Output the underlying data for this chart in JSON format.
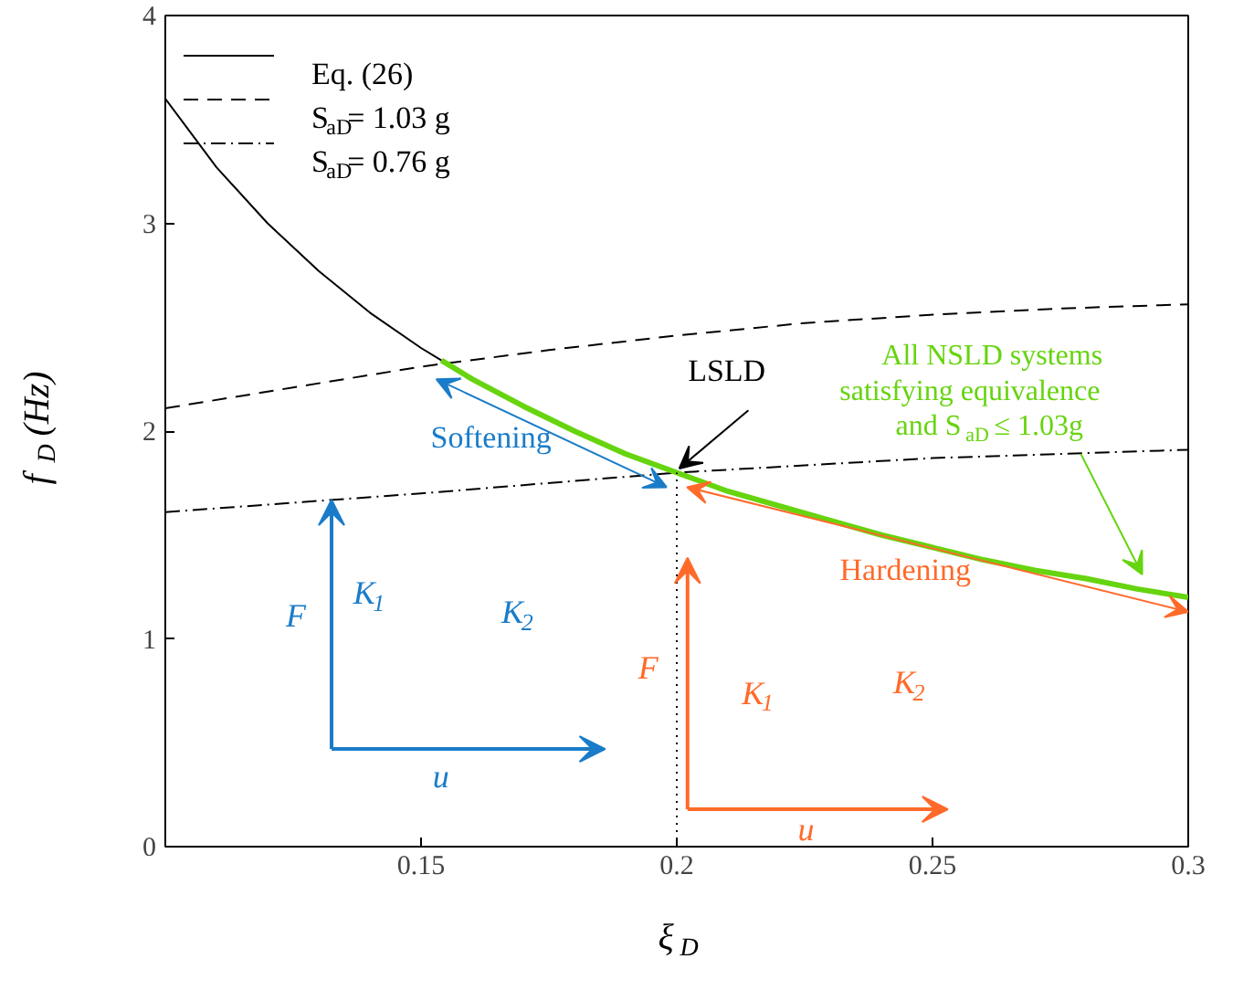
{
  "chart_data": {
    "type": "line",
    "xlabel": "ξ$_{D}$",
    "ylabel": "f$_{D}$ (Hz)",
    "xlim": [
      0.1,
      0.3
    ],
    "ylim": [
      0,
      4
    ],
    "xticks": [
      0.15,
      0.2,
      0.25,
      0.3
    ],
    "yticks": [
      0,
      1,
      2,
      3,
      4
    ],
    "grid": false,
    "legend": "top left",
    "series": [
      {
        "name": "Eq. (26)",
        "color": "#000000",
        "line_style": "solid",
        "x": [
          0.1,
          0.11,
          0.12,
          0.13,
          0.14,
          0.15,
          0.154
        ],
        "values": [
          3.6,
          3.27,
          3.0,
          2.77,
          2.57,
          2.4,
          2.34
        ]
      },
      {
        "name": "S$_{aD}$= 1.03 g",
        "color": "#000000",
        "line_style": "dashed",
        "x": [
          0.1,
          0.125,
          0.15,
          0.175,
          0.2,
          0.225,
          0.25,
          0.275,
          0.3
        ],
        "values": [
          2.11,
          2.21,
          2.31,
          2.39,
          2.46,
          2.52,
          2.56,
          2.59,
          2.61
        ]
      },
      {
        "name": "S$_{aD}$= 0.76 g",
        "color": "#000000",
        "line_style": "dashdot",
        "x": [
          0.1,
          0.15,
          0.2,
          0.25,
          0.3
        ],
        "values": [
          1.61,
          1.7,
          1.8,
          1.87,
          1.91
        ]
      },
      {
        "color": "#66d40e",
        "line_style": "solid",
        "x": [
          0.154,
          0.16,
          0.17,
          0.18,
          0.19,
          0.2,
          0.21,
          0.22,
          0.23,
          0.24,
          0.25,
          0.26,
          0.27,
          0.28,
          0.29,
          0.3
        ],
        "values": [
          2.34,
          2.25,
          2.12,
          2.0,
          1.89,
          1.8,
          1.71,
          1.64,
          1.57,
          1.5,
          1.44,
          1.38,
          1.33,
          1.29,
          1.24,
          1.2
        ]
      }
    ],
    "ref_lines": [
      {
        "axis": "x",
        "value": 0.2,
        "line_style": "dotted"
      }
    ],
    "annotations": [
      {
        "text": "LSLD",
        "x": 0.2,
        "y": 1.8
      },
      "Softening",
      "Hardening",
      {
        "text": "All NSLD systems\nsatisfying equivalence\nand S$_{aD}$ ≤ 1.03g",
        "x": 0.291,
        "y": 1.29
      },
      "F",
      "K$_{1}$",
      "K$_{2}$",
      "u",
      "F",
      "K$_{1}$",
      "K$_{2}$",
      "u"
    ]
  }
}
